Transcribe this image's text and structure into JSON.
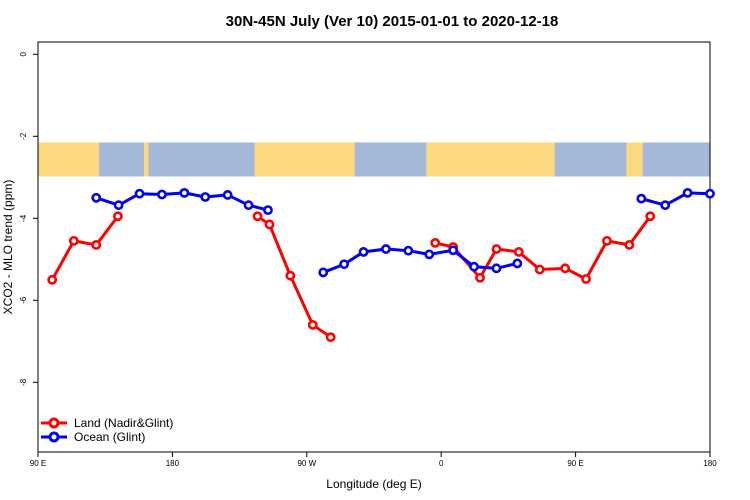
{
  "chart_data": {
    "type": "line",
    "title": "30N-45N July (Ver 10)   2015-01-01 to 2020-12-18",
    "xlabel": "Longitude (deg E)",
    "ylabel": "XCO2 - MLO trend (ppm)",
    "xlim": [
      90,
      540
    ],
    "ylim": [
      -9.7,
      0.3
    ],
    "x_ticks": [
      {
        "value": 90,
        "label": "90 E"
      },
      {
        "value": 180,
        "label": "180"
      },
      {
        "value": 270,
        "label": "90 W"
      },
      {
        "value": 360,
        "label": "0"
      },
      {
        "value": 450,
        "label": "90 E"
      },
      {
        "value": 540,
        "label": "180"
      }
    ],
    "y_ticks": [
      {
        "value": 0,
        "label": "0"
      },
      {
        "value": -2,
        "label": "-2"
      },
      {
        "value": -4,
        "label": "-4"
      },
      {
        "value": -6,
        "label": "-6"
      },
      {
        "value": -8,
        "label": "-8"
      }
    ],
    "legend_position": "bottom-left",
    "map_strip": {
      "y_top": -2.15,
      "y_bottom": -2.98,
      "ocean_color": "#a4b8d9",
      "land_color": "#fcd97e"
    },
    "series": [
      {
        "name": "Land (Nadir&Glint)",
        "color": "#ff0000",
        "segments": [
          [
            [
              99.5,
              -5.5
            ],
            [
              114,
              -4.55
            ],
            [
              129,
              -4.65
            ],
            [
              143.5,
              -3.95
            ]
          ],
          [
            [
              237,
              -3.95
            ],
            [
              245,
              -4.15
            ],
            [
              259,
              -5.4
            ],
            [
              274,
              -6.6
            ],
            [
              286,
              -6.9
            ]
          ],
          [
            [
              356,
              -4.6
            ],
            [
              368,
              -4.7
            ],
            [
              386,
              -5.45
            ],
            [
              397,
              -4.75
            ],
            [
              412,
              -4.82
            ],
            [
              426,
              -5.25
            ],
            [
              443,
              -5.22
            ],
            [
              457,
              -5.48
            ],
            [
              471,
              -4.55
            ],
            [
              486,
              -4.65
            ],
            [
              500,
              -3.95
            ]
          ]
        ]
      },
      {
        "name": "Ocean (Glint)",
        "color": "#0000ee",
        "segments": [
          [
            [
              129,
              -3.5
            ],
            [
              144,
              -3.68
            ],
            [
              158,
              -3.4
            ],
            [
              173,
              -3.42
            ],
            [
              188,
              -3.38
            ],
            [
              202,
              -3.48
            ],
            [
              217,
              -3.43
            ],
            [
              231,
              -3.68
            ],
            [
              244,
              -3.8
            ]
          ],
          [
            [
              281,
              -5.32
            ],
            [
              295,
              -5.12
            ],
            [
              308,
              -4.82
            ],
            [
              323,
              -4.75
            ],
            [
              338,
              -4.79
            ],
            [
              352,
              -4.88
            ],
            [
              368,
              -4.78
            ],
            [
              382,
              -5.18
            ],
            [
              397,
              -5.22
            ],
            [
              411,
              -5.1
            ]
          ],
          [
            [
              494,
              -3.52
            ],
            [
              510,
              -3.68
            ],
            [
              525,
              -3.38
            ],
            [
              540,
              -3.4
            ]
          ]
        ]
      }
    ]
  }
}
